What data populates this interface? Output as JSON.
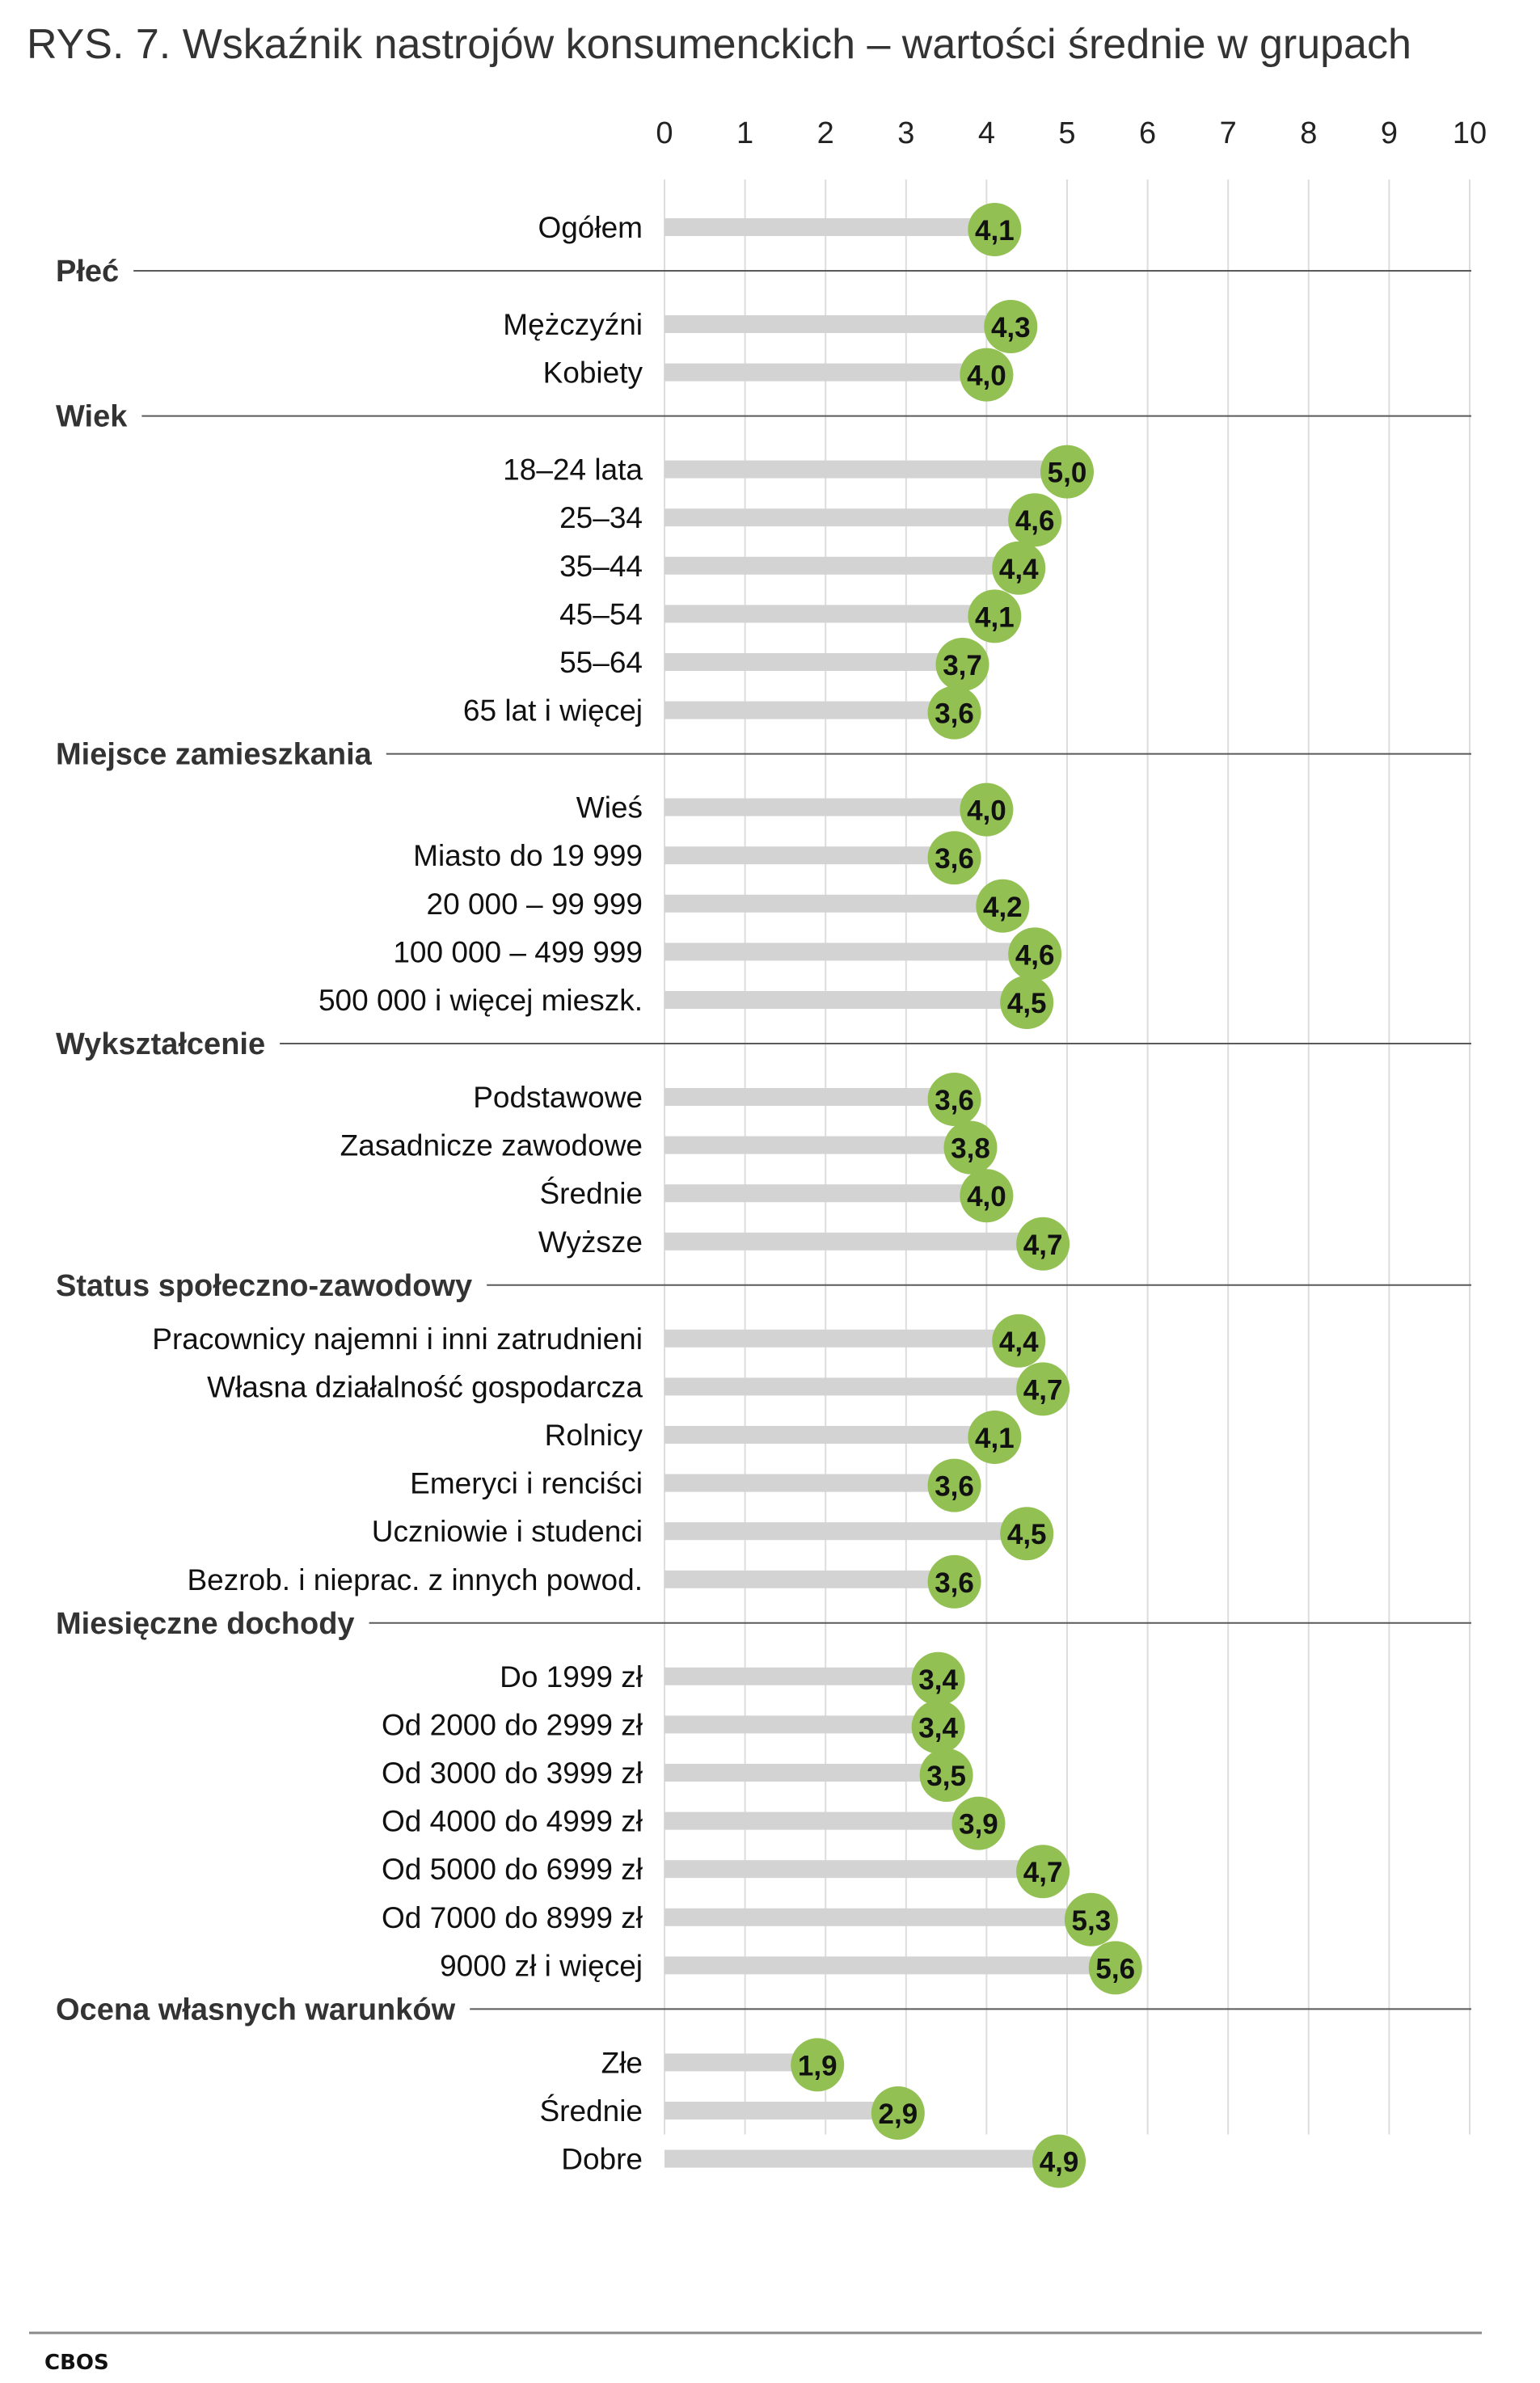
{
  "colors": {
    "dot": "#93c053",
    "bar": "#d3d3d3",
    "grid": "#dddddd",
    "divider": "#5a5a5a",
    "text": "#111111",
    "title": "#333333"
  },
  "footer": {
    "source": "CBOS"
  },
  "chart_data": {
    "type": "bar",
    "subtype": "lollipop-horizontal",
    "title": "RYS. 7. Wskaźnik nastrojów konsumenckich – wartości średnie w grupach",
    "xlabel": "",
    "ylabel": "",
    "xlim": [
      0,
      10
    ],
    "xticks": [
      "0",
      "1",
      "2",
      "3",
      "4",
      "5",
      "6",
      "7",
      "8",
      "9",
      "10"
    ],
    "grid": true,
    "legend": "none",
    "groups": [
      {
        "name": "",
        "items": [
          {
            "label": "Ogółem",
            "value": 4.1,
            "value_label": "4,1"
          }
        ]
      },
      {
        "name": "Płeć",
        "items": [
          {
            "label": "Mężczyźni",
            "value": 4.3,
            "value_label": "4,3"
          },
          {
            "label": "Kobiety",
            "value": 4.0,
            "value_label": "4,0"
          }
        ]
      },
      {
        "name": "Wiek",
        "items": [
          {
            "label": "18–24 lata",
            "value": 5.0,
            "value_label": "5,0"
          },
          {
            "label": "25–34",
            "value": 4.6,
            "value_label": "4,6"
          },
          {
            "label": "35–44",
            "value": 4.4,
            "value_label": "4,4"
          },
          {
            "label": "45–54",
            "value": 4.1,
            "value_label": "4,1"
          },
          {
            "label": "55–64",
            "value": 3.7,
            "value_label": "3,7"
          },
          {
            "label": "65 lat i więcej",
            "value": 3.6,
            "value_label": "3,6"
          }
        ]
      },
      {
        "name": "Miejsce zamieszkania",
        "items": [
          {
            "label": "Wieś",
            "value": 4.0,
            "value_label": "4,0"
          },
          {
            "label": "Miasto do 19 999",
            "value": 3.6,
            "value_label": "3,6"
          },
          {
            "label": "20 000 – 99 999",
            "value": 4.2,
            "value_label": "4,2"
          },
          {
            "label": "100 000 – 499 999",
            "value": 4.6,
            "value_label": "4,6"
          },
          {
            "label": "500 000 i więcej mieszk.",
            "value": 4.5,
            "value_label": "4,5"
          }
        ]
      },
      {
        "name": "Wykształcenie",
        "items": [
          {
            "label": "Podstawowe",
            "value": 3.6,
            "value_label": "3,6"
          },
          {
            "label": "Zasadnicze zawodowe",
            "value": 3.8,
            "value_label": "3,8"
          },
          {
            "label": "Średnie",
            "value": 4.0,
            "value_label": "4,0"
          },
          {
            "label": "Wyższe",
            "value": 4.7,
            "value_label": "4,7"
          }
        ]
      },
      {
        "name": "Status społeczno-zawodowy",
        "items": [
          {
            "label": "Pracownicy najemni i inni zatrudnieni",
            "value": 4.4,
            "value_label": "4,4"
          },
          {
            "label": "Własna działalność gospodarcza",
            "value": 4.7,
            "value_label": "4,7"
          },
          {
            "label": "Rolnicy",
            "value": 4.1,
            "value_label": "4,1"
          },
          {
            "label": "Emeryci i renciści",
            "value": 3.6,
            "value_label": "3,6"
          },
          {
            "label": "Uczniowie i studenci",
            "value": 4.5,
            "value_label": "4,5"
          },
          {
            "label": "Bezrob. i nieprac. z innych powod.",
            "value": 3.6,
            "value_label": "3,6"
          }
        ]
      },
      {
        "name": "Miesięczne dochody",
        "items": [
          {
            "label": "Do 1999 zł",
            "value": 3.4,
            "value_label": "3,4"
          },
          {
            "label": "Od 2000 do 2999 zł",
            "value": 3.4,
            "value_label": "3,4"
          },
          {
            "label": "Od 3000 do 3999 zł",
            "value": 3.5,
            "value_label": "3,5"
          },
          {
            "label": "Od 4000 do 4999 zł",
            "value": 3.9,
            "value_label": "3,9"
          },
          {
            "label": "Od 5000 do 6999 zł",
            "value": 4.7,
            "value_label": "4,7"
          },
          {
            "label": "Od 7000 do 8999 zł",
            "value": 5.3,
            "value_label": "5,3"
          },
          {
            "label": "9000 zł i więcej",
            "value": 5.6,
            "value_label": "5,6"
          }
        ]
      },
      {
        "name": "Ocena własnych warunków",
        "items": [
          {
            "label": "Złe",
            "value": 1.9,
            "value_label": "1,9"
          },
          {
            "label": "Średnie",
            "value": 2.9,
            "value_label": "2,9"
          },
          {
            "label": "Dobre",
            "value": 4.9,
            "value_label": "4,9"
          }
        ]
      }
    ]
  }
}
